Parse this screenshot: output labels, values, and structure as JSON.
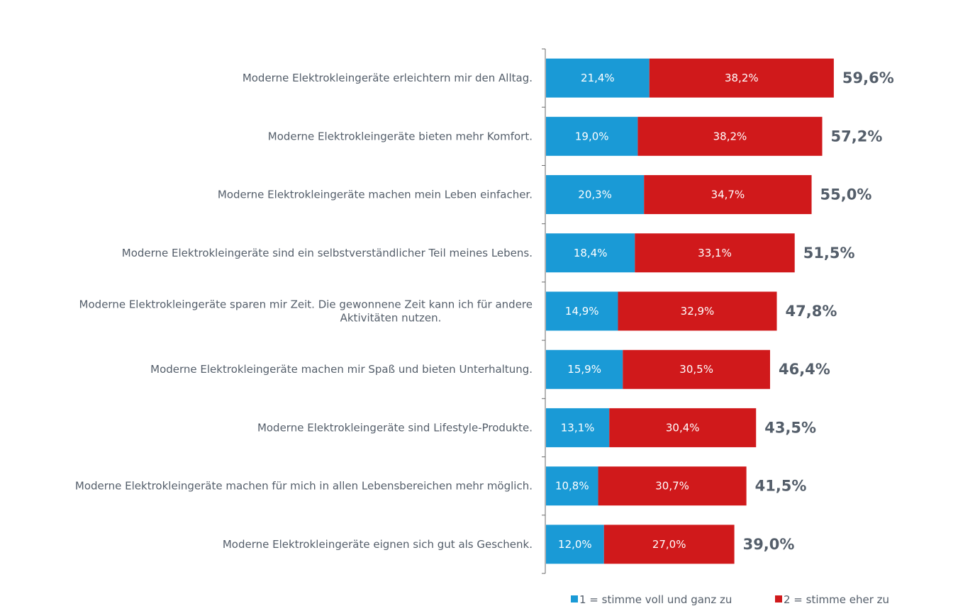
{
  "chart_data": {
    "type": "bar",
    "orientation": "horizontal",
    "stacked": true,
    "categories": [
      "Moderne Elektrokleingeräte erleichtern mir den Alltag.",
      "Moderne Elektrokleingeräte bieten mehr Komfort.",
      "Moderne Elektrokleingeräte machen mein Leben einfacher.",
      "Moderne Elektrokleingeräte sind ein selbstverständlicher Teil meines Lebens.",
      "Moderne Elektrokleingeräte sparen mir Zeit. Die gewonnene Zeit kann ich für andere Aktivitäten nutzen.",
      "Moderne Elektrokleingeräte machen mir Spaß und bieten Unterhaltung.",
      "Moderne Elektrokleingeräte sind Lifestyle-Produkte.",
      "Moderne Elektrokleingeräte machen für mich in allen Lebensbereichen mehr möglich.",
      "Moderne Elektrokleingeräte eignen sich gut als Geschenk."
    ],
    "series": [
      {
        "name": "1 = stimme voll und ganz zu",
        "color": "#1a9ad6",
        "values": [
          21.4,
          19.0,
          20.3,
          18.4,
          14.9,
          15.9,
          13.1,
          10.8,
          12.0
        ],
        "labels": [
          "21,4%",
          "19,0%",
          "20,3%",
          "18,4%",
          "14,9%",
          "15,9%",
          "13,1%",
          "10,8%",
          "12,0%"
        ]
      },
      {
        "name": "2 = stimme eher zu",
        "color": "#d0191b",
        "values": [
          38.2,
          38.2,
          34.7,
          33.1,
          32.9,
          30.5,
          30.4,
          30.7,
          27.0
        ],
        "labels": [
          "38,2%",
          "38,2%",
          "34,7%",
          "33,1%",
          "32,9%",
          "30,5%",
          "30,4%",
          "30,7%",
          "27,0%"
        ]
      }
    ],
    "totals": [
      59.6,
      57.2,
      55.0,
      51.5,
      47.8,
      46.4,
      43.5,
      41.5,
      39.0
    ],
    "total_labels": [
      "59,6%",
      "57,2%",
      "55,0%",
      "51,5%",
      "47,8%",
      "46,4%",
      "43,5%",
      "41,5%",
      "39,0%"
    ],
    "xlim": [
      0,
      100
    ],
    "legend_position": "bottom-right",
    "grid": false,
    "title": "",
    "xlabel": "",
    "ylabel": ""
  }
}
